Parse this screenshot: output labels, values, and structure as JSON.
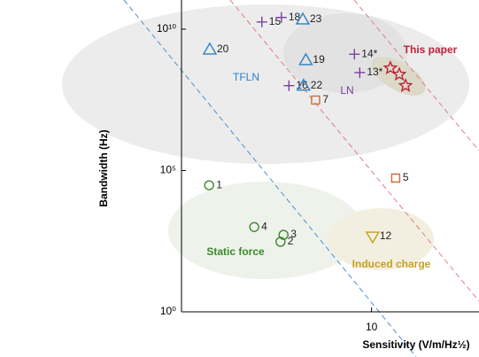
{
  "chart_data": {
    "type": "scatter",
    "x_label": "Sensitivity (V/m/Hz½)",
    "y_label": "Bandwidth (Hz)",
    "xlim": [
      0.05,
      200
    ],
    "ylim": [
      1,
      100000000000
    ],
    "xscale": "log",
    "yscale": "log",
    "xticks": [
      10
    ],
    "yticks": [
      {
        "value": 1,
        "label": "10⁰"
      },
      {
        "value": 100000,
        "label": "10⁵"
      },
      {
        "value": 10000000000,
        "label": "10¹⁰"
      }
    ],
    "series": [
      {
        "name": "LN",
        "marker": "plus",
        "color": "#7b3fa0",
        "labels": [
          "15",
          "18",
          "14*",
          "13*",
          "16"
        ],
        "x": [
          0.47,
          0.81,
          6.2,
          7.2,
          1.0
        ],
        "values": [
          18000000000,
          26000000000,
          1300000000,
          290000000,
          100000000
        ]
      },
      {
        "name": "TFLN",
        "marker": "triangle",
        "color": "#2a7fc9",
        "labels": [
          "23",
          "20",
          "19",
          "22"
        ],
        "x": [
          1.47,
          0.11,
          1.6,
          1.5
        ],
        "values": [
          22000000000,
          1900000000,
          800000000,
          100000000
        ]
      },
      {
        "name": "This paper",
        "marker": "star",
        "color": "#c0203a",
        "x": [
          16.9,
          21.7,
          25.8
        ],
        "values": [
          420000000,
          250000000,
          100000000
        ]
      },
      {
        "name": "Static force",
        "marker": "circle",
        "color": "#3a8a2a",
        "labels": [
          "1",
          "4",
          "3",
          "2"
        ],
        "x": [
          0.108,
          0.38,
          0.86,
          0.79
        ],
        "values": [
          30000,
          1000,
          530,
          300
        ]
      },
      {
        "marker": "square",
        "color": "#c87137",
        "labels": [
          "7",
          "5"
        ],
        "x": [
          2.1,
          19.6
        ],
        "values": [
          31000000,
          54000
        ]
      },
      {
        "name": "Induced charge",
        "marker": "tridown",
        "color": "#c8a020",
        "labels": [
          "12"
        ],
        "x": [
          10.3
        ],
        "values": [
          460
        ]
      }
    ]
  }
}
